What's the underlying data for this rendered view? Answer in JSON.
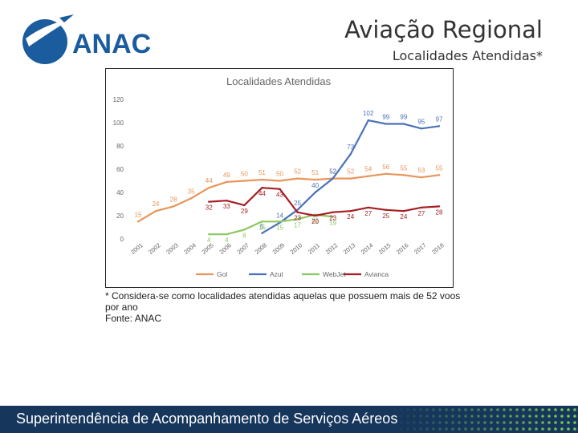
{
  "header": {
    "title": "Aviação Regional",
    "subtitle": "Localidades Atendidas*",
    "logo_text": "ANAC"
  },
  "colors": {
    "gol": "#e8955a",
    "azul": "#4a72b8",
    "webjet": "#8cc760",
    "avianca": "#a51e22",
    "footer_bg": "#16365c",
    "logo_blue": "#1b5c9e"
  },
  "chart_data": {
    "type": "line",
    "title": "Localidades Atendidas",
    "xlabel": "",
    "ylabel": "",
    "ylim": [
      0,
      120
    ],
    "yticks": [
      0,
      20,
      40,
      60,
      80,
      100,
      120
    ],
    "categories": [
      "2001",
      "2002",
      "2003",
      "2004",
      "2005",
      "2006",
      "2007",
      "2008",
      "2009",
      "2010",
      "2011",
      "2012",
      "2013",
      "2014",
      "2015",
      "2016",
      "2017",
      "2018"
    ],
    "grid": false,
    "legend": "bottom",
    "series": [
      {
        "name": "Gol",
        "color": "#e8955a",
        "values": [
          15,
          24,
          28,
          35,
          44,
          49,
          50,
          51,
          50,
          52,
          51,
          52,
          52,
          54,
          56,
          55,
          53,
          55
        ]
      },
      {
        "name": "Azul",
        "color": "#4a72b8",
        "values": [
          null,
          null,
          null,
          null,
          null,
          null,
          null,
          5,
          14,
          25,
          40,
          52,
          73,
          102,
          99,
          99,
          95,
          97
        ]
      },
      {
        "name": "WebJet",
        "color": "#8cc760",
        "values": [
          null,
          null,
          null,
          null,
          4,
          4,
          8,
          15,
          15,
          17,
          21,
          19,
          null,
          null,
          null,
          null,
          null,
          null
        ]
      },
      {
        "name": "Avianca",
        "color": "#a51e22",
        "values": [
          null,
          null,
          null,
          null,
          32,
          33,
          29,
          44,
          43,
          23,
          20,
          23,
          24,
          27,
          25,
          24,
          27,
          28
        ]
      }
    ]
  },
  "footnote": {
    "line1": "* Considera-se como localidades atendidas aquelas que possuem mais de 52 voos",
    "line2": "por ano",
    "line3": "Fonte: ANAC"
  },
  "footer": {
    "text": "Superintendência de Acompanhamento de Serviços Aéreos"
  }
}
